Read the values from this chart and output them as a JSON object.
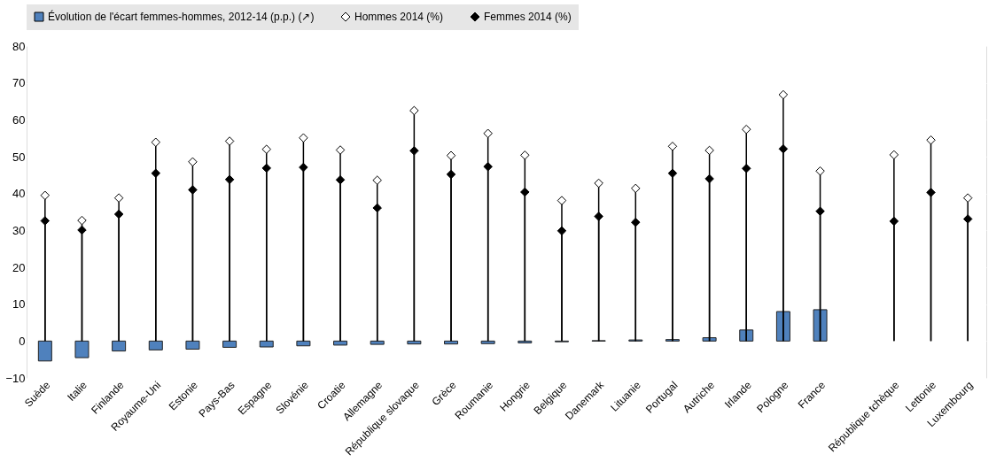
{
  "chart_data": {
    "type": "bar",
    "categories": [
      "Suède",
      "Italie",
      "Finlande",
      "Royaume-Uni",
      "Estonie",
      "Pays-Bas",
      "Espagne",
      "Slovénie",
      "Croatie",
      "Allemagne",
      "République slovaque",
      "Grèce",
      "Roumanie",
      "Hongrie",
      "Belgique",
      "Danemark",
      "Lituanie",
      "Portugal",
      "Autriche",
      "Irlande",
      "Pologne",
      "France",
      null,
      "République tchèque",
      "Lettonie",
      "Luxembourg"
    ],
    "series": [
      {
        "name": "Évolution de l'écart femmes-hommes, 2012-14 (p.p.) (↗)",
        "color": "#4f81bd",
        "values": [
          -5.4,
          -4.5,
          -2.7,
          -2.4,
          -2.2,
          -1.7,
          -1.6,
          -1.3,
          -1.1,
          -0.9,
          -0.8,
          -0.8,
          -0.7,
          -0.5,
          -0.2,
          0.1,
          0.3,
          0.4,
          0.9,
          3.0,
          8.0,
          8.5,
          null,
          null,
          null,
          null
        ]
      },
      {
        "name": "Hommes 2014 (%)",
        "type": "scatter",
        "color": "#ffffff",
        "values": [
          39.5,
          32.7,
          38.8,
          53.9,
          48.6,
          54.2,
          52.0,
          55.1,
          51.8,
          43.6,
          62.5,
          50.3,
          56.3,
          50.4,
          38.1,
          42.8,
          41.4,
          52.8,
          51.7,
          57.4,
          66.8,
          46.1,
          null,
          50.5,
          54.5,
          38.8
        ]
      },
      {
        "name": "Femmes 2014 (%)",
        "type": "scatter",
        "color": "#000000",
        "values": [
          32.6,
          30.1,
          34.4,
          45.5,
          41.0,
          43.8,
          46.9,
          47.1,
          43.7,
          36.1,
          51.6,
          45.2,
          47.3,
          40.4,
          29.9,
          33.8,
          32.2,
          45.5,
          44.0,
          46.8,
          52.1,
          35.2,
          null,
          32.5,
          40.3,
          33.1
        ]
      }
    ],
    "ylim": [
      -10,
      80
    ],
    "yticks": [
      -10,
      0,
      10,
      20,
      30,
      40,
      50,
      60,
      70,
      80
    ],
    "grid": true,
    "legend": "top",
    "marker": "diamond"
  }
}
